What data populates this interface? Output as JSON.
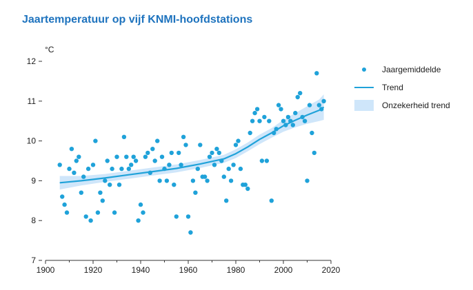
{
  "chart_data": {
    "type": "scatter",
    "title": "Jaartemperatuur op vijf KNMI-hoofdstations",
    "ylabel": "°C",
    "xlabel": "",
    "xlim": [
      1900,
      2020
    ],
    "ylim": [
      7,
      12
    ],
    "x_ticks": [
      "1900",
      "1920",
      "1940",
      "1960",
      "1980",
      "2000",
      "2020"
    ],
    "y_ticks": [
      "7",
      "8",
      "9",
      "10",
      "11",
      "12"
    ],
    "grid": "none",
    "legend_position": "right",
    "colors": {
      "points": "#1fa2d9",
      "trend": "#1fa2d9",
      "band": "#cfe6fa",
      "title": "#1e73be"
    },
    "legend": [
      "Jaargemiddelde",
      "Trend",
      "Onzekerheid trend"
    ],
    "series": [
      {
        "name": "Jaargemiddelde",
        "kind": "scatter",
        "x": [
          1906,
          1907,
          1908,
          1909,
          1910,
          1911,
          1912,
          1913,
          1914,
          1915,
          1916,
          1917,
          1918,
          1919,
          1920,
          1921,
          1922,
          1923,
          1924,
          1925,
          1926,
          1927,
          1928,
          1929,
          1930,
          1931,
          1932,
          1933,
          1934,
          1935,
          1936,
          1937,
          1938,
          1939,
          1940,
          1941,
          1942,
          1943,
          1944,
          1945,
          1946,
          1947,
          1948,
          1949,
          1950,
          1951,
          1952,
          1953,
          1954,
          1955,
          1956,
          1957,
          1958,
          1959,
          1960,
          1961,
          1962,
          1963,
          1964,
          1965,
          1966,
          1967,
          1968,
          1969,
          1970,
          1971,
          1972,
          1973,
          1974,
          1975,
          1976,
          1977,
          1978,
          1979,
          1980,
          1981,
          1982,
          1983,
          1984,
          1985,
          1986,
          1987,
          1988,
          1989,
          1990,
          1991,
          1992,
          1993,
          1994,
          1995,
          1996,
          1997,
          1998,
          1999,
          2000,
          2001,
          2002,
          2003,
          2004,
          2005,
          2006,
          2007,
          2008,
          2009,
          2010,
          2011,
          2012,
          2013,
          2014,
          2015,
          2016,
          2017
        ],
        "y": [
          9.4,
          8.6,
          8.4,
          8.2,
          9.3,
          9.8,
          9.2,
          9.5,
          9.6,
          8.7,
          9.1,
          8.1,
          9.3,
          8.0,
          9.4,
          10.0,
          8.2,
          8.7,
          8.5,
          9.0,
          9.5,
          8.9,
          9.3,
          8.2,
          9.6,
          8.9,
          9.3,
          10.1,
          9.6,
          9.3,
          9.4,
          9.6,
          9.5,
          8.0,
          8.4,
          8.2,
          9.6,
          9.7,
          9.2,
          9.8,
          9.5,
          10.0,
          9.0,
          9.6,
          9.3,
          9.0,
          9.4,
          9.7,
          8.9,
          8.1,
          9.7,
          9.4,
          10.1,
          9.9,
          8.1,
          7.7,
          9.0,
          8.7,
          9.3,
          9.9,
          9.1,
          9.1,
          9.0,
          9.6,
          9.7,
          9.4,
          9.8,
          9.7,
          9.5,
          9.1,
          8.5,
          9.3,
          9.0,
          9.4,
          9.9,
          10.0,
          9.3,
          8.9,
          8.9,
          8.8,
          10.2,
          10.5,
          10.7,
          10.8,
          10.5,
          9.5,
          10.6,
          9.5,
          10.5,
          8.5,
          10.2,
          10.3,
          10.9,
          10.8,
          10.5,
          10.4,
          10.6,
          10.5,
          10.4,
          10.7,
          11.1,
          11.2,
          10.6,
          10.5,
          9.0,
          10.9,
          10.2,
          9.7,
          11.7,
          10.9,
          10.8,
          11.0
        ]
      },
      {
        "name": "Trend",
        "kind": "line",
        "x": [
          1906,
          1915,
          1925,
          1935,
          1945,
          1955,
          1965,
          1975,
          1980,
          1985,
          1990,
          1995,
          2000,
          2005,
          2010,
          2015,
          2017
        ],
        "y": [
          8.95,
          9.0,
          9.07,
          9.15,
          9.23,
          9.31,
          9.42,
          9.55,
          9.68,
          9.85,
          10.04,
          10.2,
          10.38,
          10.52,
          10.65,
          10.77,
          10.85
        ]
      },
      {
        "name": "Onzekerheid trend",
        "kind": "band",
        "x": [
          1906,
          1915,
          1925,
          1935,
          1945,
          1955,
          1965,
          1975,
          1980,
          1985,
          1990,
          1995,
          2000,
          2005,
          2010,
          2015,
          2017
        ],
        "lower": [
          8.78,
          8.88,
          8.97,
          9.05,
          9.13,
          9.21,
          9.32,
          9.45,
          9.57,
          9.74,
          9.92,
          10.08,
          10.23,
          10.34,
          10.43,
          10.5,
          10.53
        ],
        "upper": [
          9.12,
          9.12,
          9.17,
          9.25,
          9.33,
          9.41,
          9.52,
          9.65,
          9.79,
          9.96,
          10.16,
          10.32,
          10.53,
          10.7,
          10.87,
          11.04,
          11.17
        ]
      }
    ]
  }
}
